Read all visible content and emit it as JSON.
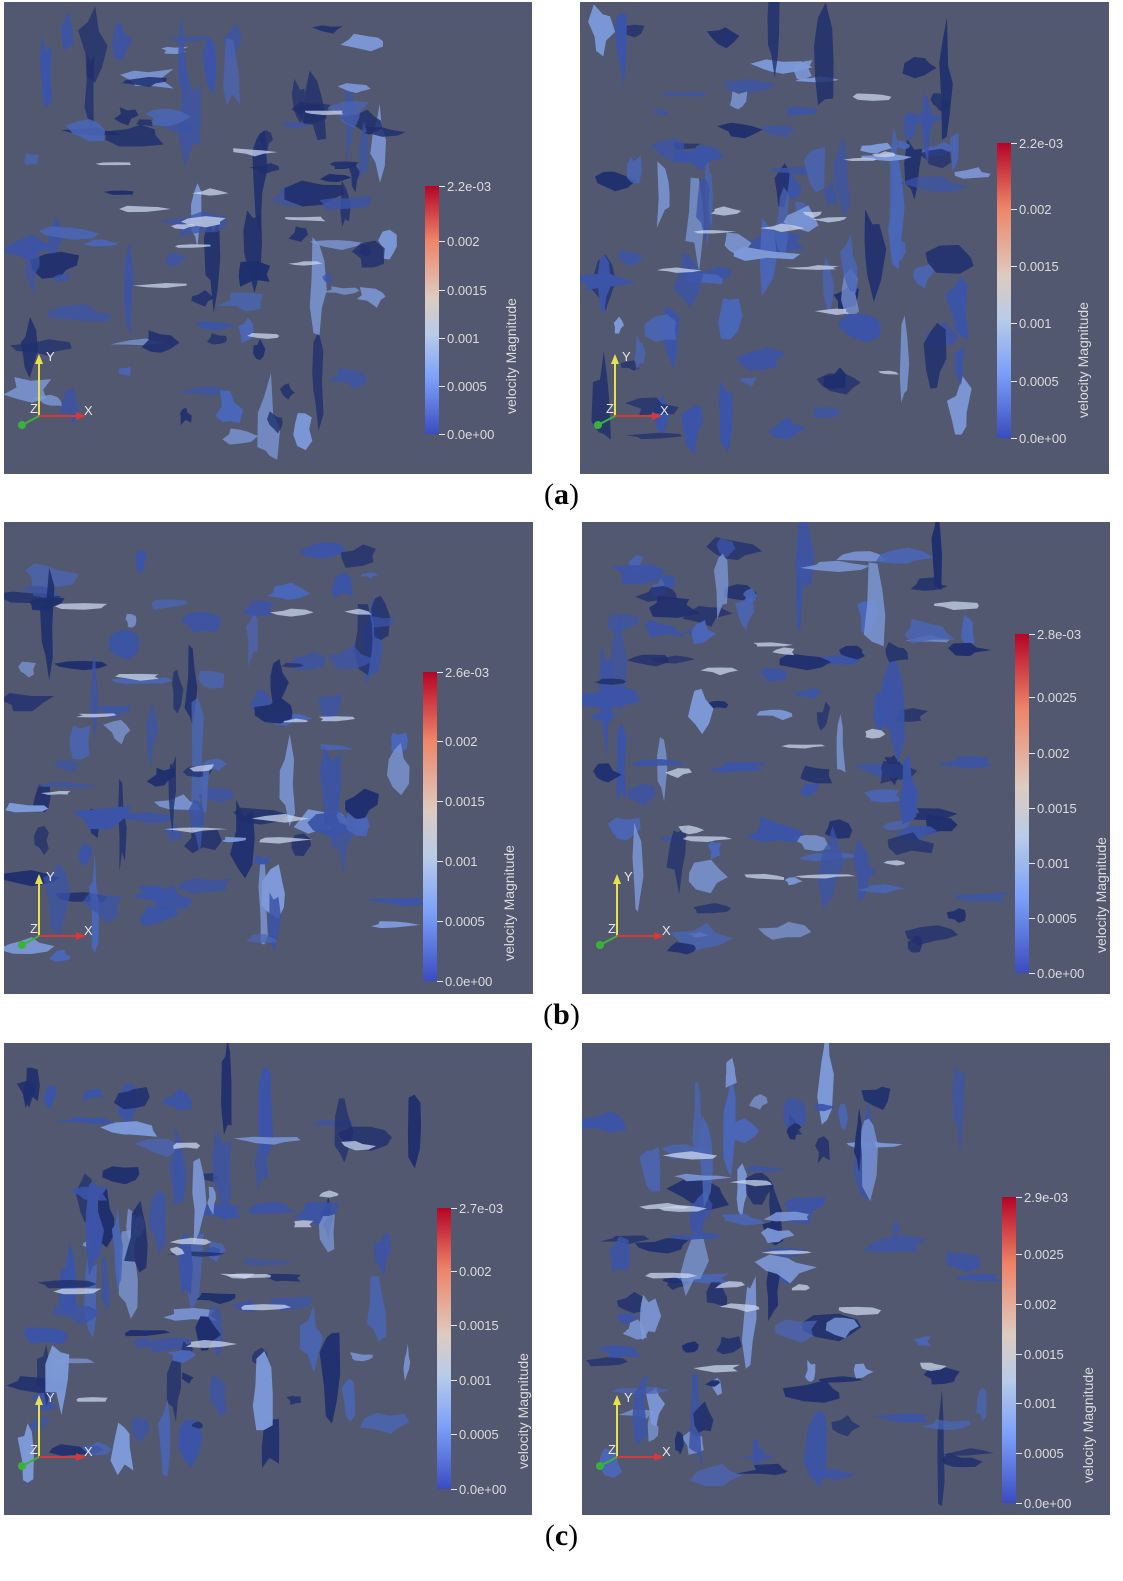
{
  "colorbar_title": "velocity Magnitude",
  "axes_letters": {
    "x": "X",
    "y": "Y",
    "z": "Z"
  },
  "colors": {
    "background": "#525870",
    "surface_dark": "#1f2f6e",
    "surface_mid": "#3b54a8",
    "surface_light": "#7d99d8",
    "highlight": "#c9d6ee"
  },
  "rows": [
    {
      "label": "(a)",
      "panels": [
        {
          "ticks": [
            "2.2e-03",
            "0.002",
            "0.0015",
            "0.001",
            "0.0005",
            "0.0e+00"
          ]
        },
        {
          "ticks": [
            "2.2e-03",
            "0.002",
            "0.0015",
            "0.001",
            "0.0005",
            "0.0e+00"
          ]
        }
      ]
    },
    {
      "label": "(b)",
      "panels": [
        {
          "ticks": [
            "2.6e-03",
            "0.002",
            "0.0015",
            "0.001",
            "0.0005",
            "0.0e+00"
          ]
        },
        {
          "ticks": [
            "2.8e-03",
            "0.0025",
            "0.002",
            "0.0015",
            "0.001",
            "0.0005",
            "0.0e+00"
          ]
        }
      ]
    },
    {
      "label": "(c)",
      "panels": [
        {
          "ticks": [
            "2.7e-03",
            "0.002",
            "0.0015",
            "0.001",
            "0.0005",
            "0.0e+00"
          ]
        },
        {
          "ticks": [
            "2.9e-03",
            "0.0025",
            "0.002",
            "0.0015",
            "0.001",
            "0.0005",
            "0.0e+00"
          ]
        }
      ]
    }
  ]
}
